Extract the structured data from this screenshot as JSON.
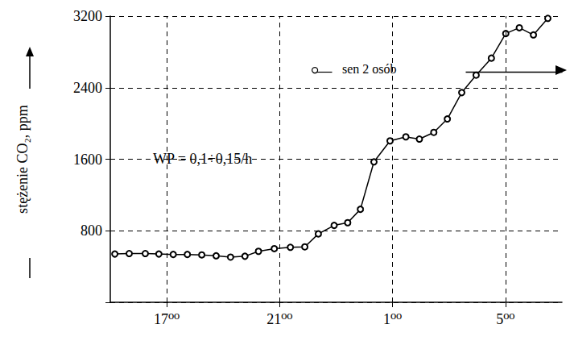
{
  "chart_data": {
    "type": "line",
    "y_label": "stężenie CO₂, ppm",
    "annotations": [
      "WP = 0,1÷0,15/h",
      "sen 2 osób"
    ],
    "x": [
      15.16,
      15.67,
      16.24,
      16.72,
      17.23,
      17.73,
      18.24,
      18.75,
      19.26,
      19.77,
      20.25,
      20.81,
      21.38,
      21.89,
      22.37,
      22.93,
      23.41,
      23.86,
      24.34,
      24.91,
      25.47,
      25.95,
      26.46,
      26.94,
      27.45,
      27.96,
      28.5,
      29.01,
      29.49,
      29.99,
      30.5
    ],
    "values": [
      540,
      545,
      545,
      540,
      535,
      535,
      530,
      520,
      505,
      515,
      570,
      600,
      615,
      620,
      765,
      860,
      890,
      1040,
      1570,
      1805,
      1850,
      1825,
      1900,
      2050,
      2345,
      2540,
      2730,
      3005,
      3070,
      2990,
      3175
    ],
    "color": "#000000",
    "marker": "open_circle",
    "line_style": "solid",
    "xlim": [
      15,
      31
    ],
    "xticks": [
      {
        "value": 17,
        "label": "17⁰⁰"
      },
      {
        "value": 21,
        "label": "21⁰⁰"
      },
      {
        "value": 25,
        "label": "1⁰⁰"
      },
      {
        "value": 29,
        "label": "5⁰⁰"
      }
    ],
    "ylim": [
      0,
      3200
    ],
    "yticks": [
      800,
      1600,
      2400,
      3200
    ],
    "grid": true
  }
}
